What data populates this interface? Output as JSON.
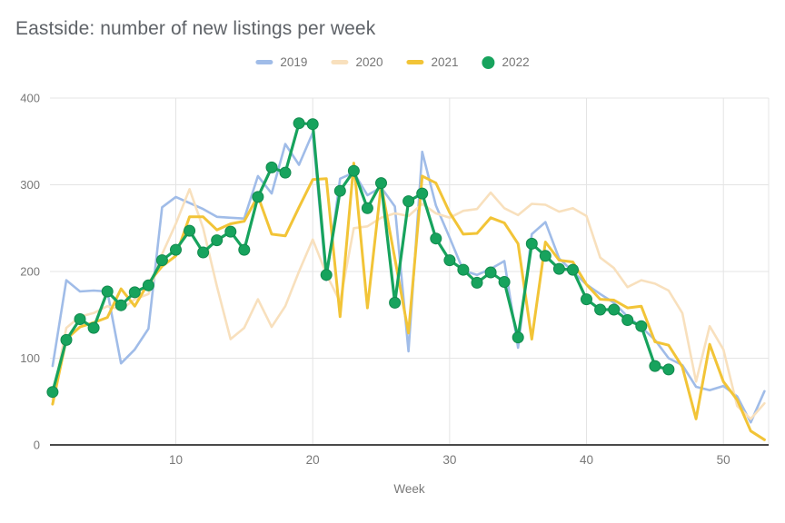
{
  "chart_data": {
    "type": "line",
    "title": "Eastside: number of new listings per week",
    "xlabel": "Week",
    "ylabel": "",
    "x_range": [
      1,
      53
    ],
    "ylim": [
      0,
      400
    ],
    "x_ticks": [
      10,
      20,
      30,
      40,
      50
    ],
    "y_ticks": [
      0,
      100,
      200,
      300,
      400
    ],
    "grid": true,
    "legend_position": "top",
    "colors": {
      "grid": "#e4e4e4",
      "axis_line": "#4a4a4a",
      "tick_text": "#787878",
      "title_text": "#5f6368",
      "marker_edge": "#128a4e"
    },
    "series": [
      {
        "name": "2019",
        "color": "#a0bce8",
        "style": "line",
        "values": [
          91,
          190,
          177,
          178,
          177,
          94,
          110,
          134,
          274,
          286,
          279,
          272,
          263,
          262,
          261,
          310,
          290,
          347,
          323,
          360,
          190,
          307,
          314,
          288,
          297,
          275,
          108,
          338,
          276,
          239,
          201,
          196,
          203,
          212,
          112,
          243,
          257,
          215,
          200,
          185,
          174,
          164,
          148,
          136,
          121,
          100,
          92,
          67,
          63,
          68,
          56,
          26,
          62
        ]
      },
      {
        "name": "2020",
        "color": "#f8e0bd",
        "style": "line",
        "values": [
          52,
          135,
          148,
          152,
          160,
          156,
          168,
          174,
          220,
          255,
          295,
          250,
          183,
          122,
          135,
          168,
          136,
          160,
          200,
          237,
          197,
          165,
          250,
          252,
          262,
          267,
          264,
          278,
          267,
          262,
          270,
          272,
          291,
          273,
          265,
          278,
          277,
          269,
          273,
          264,
          216,
          204,
          182,
          190,
          186,
          178,
          152,
          73,
          137,
          110,
          45,
          30,
          48
        ]
      },
      {
        "name": "2021",
        "color": "#f2c437",
        "style": "line",
        "values": [
          47,
          122,
          136,
          141,
          147,
          180,
          160,
          187,
          206,
          218,
          263,
          263,
          248,
          255,
          258,
          287,
          243,
          241,
          274,
          306,
          307,
          148,
          325,
          158,
          300,
          215,
          129,
          310,
          302,
          268,
          243,
          244,
          262,
          256,
          232,
          122,
          234,
          213,
          211,
          185,
          168,
          167,
          158,
          160,
          119,
          115,
          90,
          30,
          116,
          73,
          52,
          16,
          6
        ]
      },
      {
        "name": "2022",
        "color": "#17a35d",
        "style": "line+markers",
        "values": [
          61,
          121,
          145,
          135,
          177,
          161,
          176,
          184,
          213,
          225,
          247,
          222,
          236,
          246,
          225,
          286,
          320,
          314,
          371,
          370,
          196,
          293,
          316,
          273,
          302,
          164,
          281,
          290,
          238,
          213,
          202,
          187,
          199,
          188,
          124,
          232,
          218,
          203,
          202,
          168,
          156,
          156,
          144,
          137,
          91,
          87,
          null,
          null,
          null,
          null,
          null,
          null,
          null
        ]
      }
    ]
  }
}
